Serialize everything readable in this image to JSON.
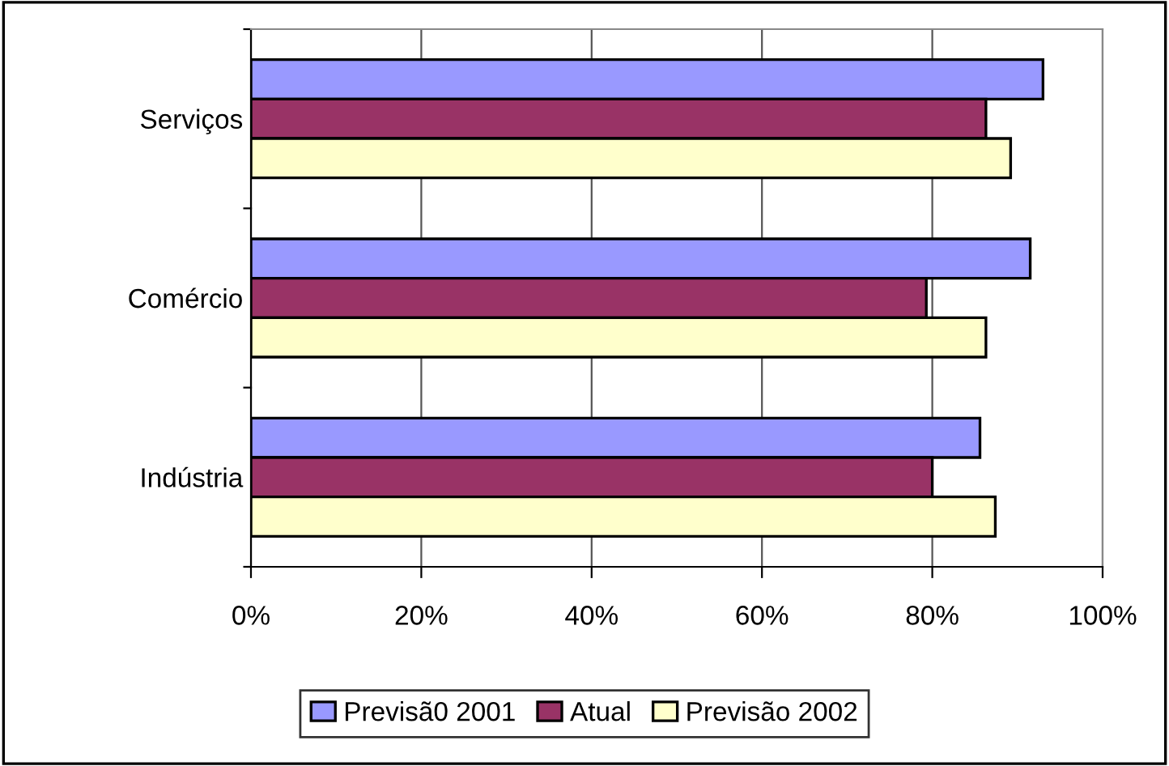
{
  "chart_data": {
    "type": "bar",
    "orientation": "horizontal",
    "categories": [
      "Serviços",
      "Comércio",
      "Indústria"
    ],
    "series": [
      {
        "name": "Previsã0 2001",
        "color": "#9999ff",
        "values": [
          93.0,
          91.5,
          85.6
        ]
      },
      {
        "name": "Atual",
        "color": "#993366",
        "values": [
          86.3,
          79.3,
          80.0
        ]
      },
      {
        "name": "Previsão 2002",
        "color": "#ffffcc",
        "values": [
          89.2,
          86.3,
          87.4
        ]
      }
    ],
    "xlim": [
      0,
      100
    ],
    "xticks": [
      {
        "value": 0,
        "label": "0%"
      },
      {
        "value": 20,
        "label": "20%"
      },
      {
        "value": 40,
        "label": "40%"
      },
      {
        "value": 60,
        "label": "60%"
      },
      {
        "value": 80,
        "label": "80%"
      },
      {
        "value": 100,
        "label": "100%"
      }
    ],
    "grid": "x",
    "legend": "bottom"
  }
}
